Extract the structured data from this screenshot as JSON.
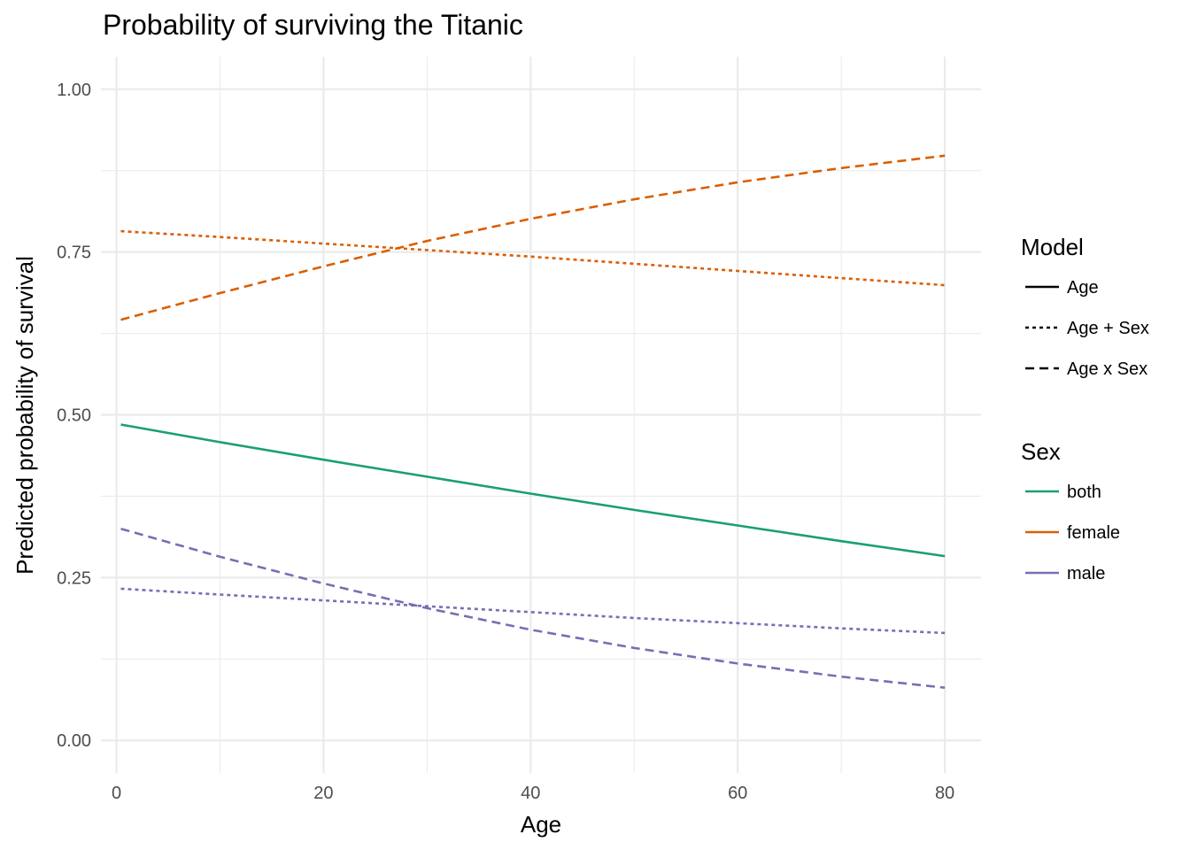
{
  "chart_data": {
    "type": "line",
    "title": "Probability of surviving the Titanic",
    "xlabel": "Age",
    "ylabel": "Predicted probability of survival",
    "xlim": [
      -1.5,
      83.5
    ],
    "ylim": [
      -0.05,
      1.05
    ],
    "x_ticks": [
      0,
      20,
      40,
      60,
      80
    ],
    "x_tick_labels": [
      "0",
      "20",
      "40",
      "60",
      "80"
    ],
    "y_ticks": [
      0,
      0.25,
      0.5,
      0.75,
      1
    ],
    "y_tick_labels": [
      "0.00",
      "0.25",
      "0.50",
      "0.75",
      "1.00"
    ],
    "grid": true,
    "legend_position": "right",
    "legends": {
      "model": {
        "title": "Model",
        "entries": [
          {
            "label": "Age",
            "linetype": "solid"
          },
          {
            "label": "Age + Sex",
            "linetype": "dotted"
          },
          {
            "label": "Age x Sex",
            "linetype": "dashed"
          }
        ]
      },
      "sex": {
        "title": "Sex",
        "entries": [
          {
            "label": "both",
            "color": "#1b9e77"
          },
          {
            "label": "female",
            "color": "#d95f02"
          },
          {
            "label": "male",
            "color": "#7570b3"
          }
        ]
      }
    },
    "series": [
      {
        "model": "Age",
        "sex": "both",
        "color": "#1b9e77",
        "linetype": "solid",
        "x": [
          0.42,
          10,
          20,
          30,
          40,
          50,
          60,
          70,
          80
        ],
        "y": [
          0.485,
          0.458,
          0.431,
          0.405,
          0.379,
          0.354,
          0.33,
          0.306,
          0.283
        ]
      },
      {
        "model": "Age + Sex",
        "sex": "female",
        "color": "#d95f02",
        "linetype": "dotted",
        "x": [
          0.42,
          10,
          20,
          30,
          40,
          50,
          60,
          70,
          80
        ],
        "y": [
          0.782,
          0.773,
          0.763,
          0.753,
          0.743,
          0.732,
          0.721,
          0.71,
          0.699
        ]
      },
      {
        "model": "Age x Sex",
        "sex": "female",
        "color": "#d95f02",
        "linetype": "dashed",
        "x": [
          0.42,
          10,
          20,
          30,
          40,
          50,
          60,
          70,
          80
        ],
        "y": [
          0.646,
          0.687,
          0.728,
          0.767,
          0.801,
          0.831,
          0.857,
          0.879,
          0.898
        ]
      },
      {
        "model": "Age + Sex",
        "sex": "male",
        "color": "#7570b3",
        "linetype": "dotted",
        "x": [
          0.42,
          10,
          20,
          30,
          40,
          50,
          60,
          70,
          80
        ],
        "y": [
          0.233,
          0.224,
          0.215,
          0.206,
          0.197,
          0.188,
          0.18,
          0.172,
          0.165
        ]
      },
      {
        "model": "Age x Sex",
        "sex": "male",
        "color": "#7570b3",
        "linetype": "dashed",
        "x": [
          0.42,
          10,
          20,
          30,
          40,
          50,
          60,
          70,
          80
        ],
        "y": [
          0.325,
          0.282,
          0.241,
          0.203,
          0.17,
          0.142,
          0.118,
          0.098,
          0.081
        ]
      }
    ]
  }
}
